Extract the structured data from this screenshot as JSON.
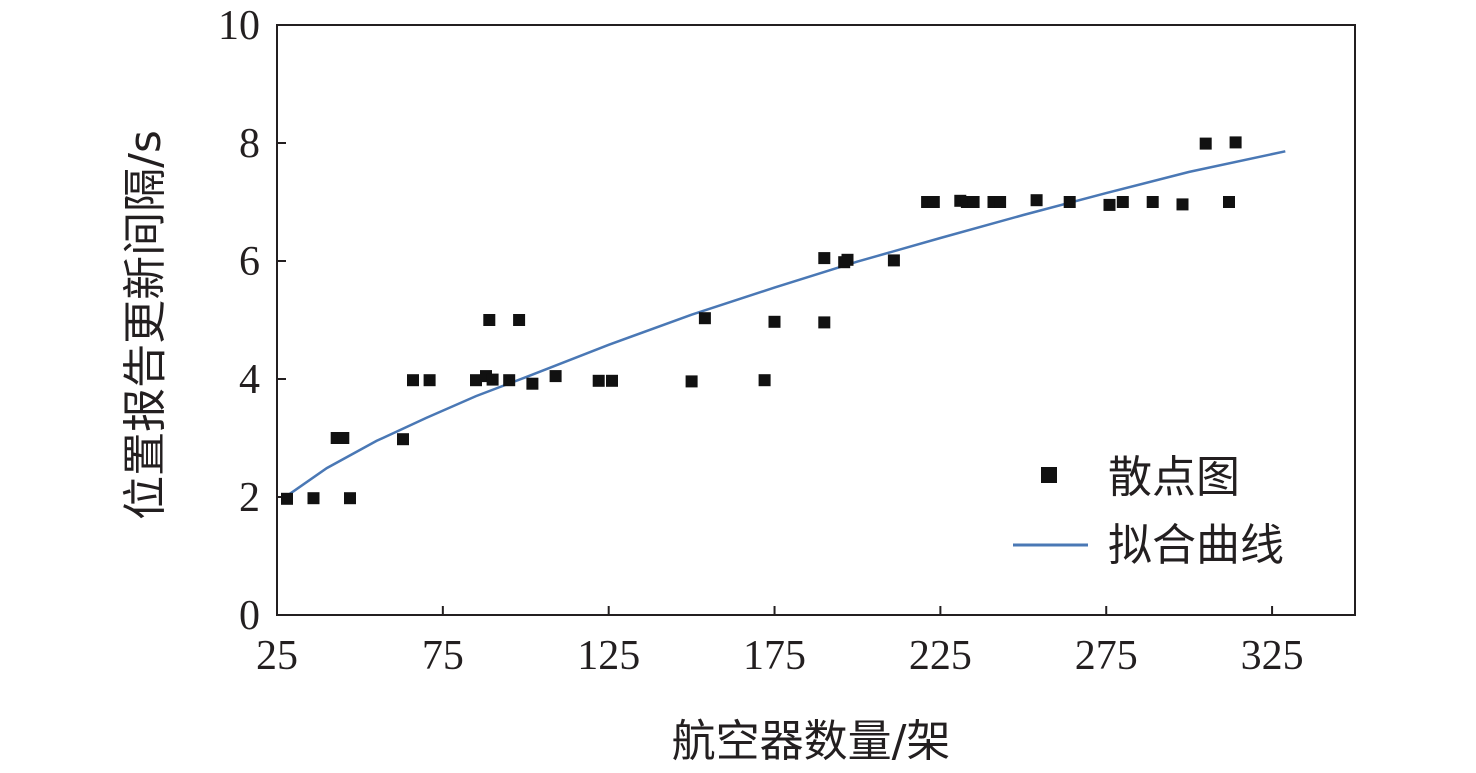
{
  "chart_data": {
    "type": "scatter",
    "xlabel": "航空器数量/架",
    "ylabel": "位置报告更新间隔/s",
    "xlim": [
      25,
      350
    ],
    "ylim": [
      0,
      10
    ],
    "xticks": [
      25,
      75,
      125,
      175,
      225,
      275,
      325
    ],
    "yticks": [
      0,
      2,
      4,
      6,
      8,
      10
    ],
    "grid": false,
    "legend_position": "bottom-right",
    "series": [
      {
        "name": "散点图",
        "kind": "scatter",
        "marker": "square",
        "color": "#111111",
        "points": [
          [
            28,
            1.97
          ],
          [
            36,
            1.98
          ],
          [
            43,
            3.0
          ],
          [
            45,
            3.0
          ],
          [
            47,
            1.98
          ],
          [
            63,
            2.98
          ],
          [
            66,
            3.98
          ],
          [
            71,
            3.98
          ],
          [
            85,
            3.98
          ],
          [
            88,
            4.05
          ],
          [
            89,
            5.0
          ],
          [
            90,
            3.99
          ],
          [
            95,
            3.98
          ],
          [
            98,
            5.0
          ],
          [
            102,
            3.92
          ],
          [
            109,
            4.05
          ],
          [
            122,
            3.97
          ],
          [
            126,
            3.97
          ],
          [
            150,
            3.96
          ],
          [
            154,
            5.03
          ],
          [
            172,
            3.98
          ],
          [
            175,
            4.97
          ],
          [
            190,
            6.05
          ],
          [
            190,
            4.96
          ],
          [
            196,
            5.98
          ],
          [
            197,
            6.02
          ],
          [
            211,
            6.01
          ],
          [
            221,
            7.0
          ],
          [
            223,
            7.0
          ],
          [
            231,
            7.02
          ],
          [
            233,
            7.0
          ],
          [
            235,
            7.0
          ],
          [
            241,
            7.0
          ],
          [
            243,
            7.0
          ],
          [
            254,
            7.03
          ],
          [
            264,
            7.0
          ],
          [
            276,
            6.95
          ],
          [
            280,
            7.0
          ],
          [
            289,
            7.0
          ],
          [
            298,
            6.96
          ],
          [
            305,
            7.99
          ],
          [
            312,
            7.0
          ],
          [
            314,
            8.01
          ]
        ]
      },
      {
        "name": "拟合曲线",
        "kind": "line",
        "color": "#4a78b5",
        "points": [
          [
            27,
            1.98
          ],
          [
            40,
            2.49
          ],
          [
            55,
            2.95
          ],
          [
            70,
            3.34
          ],
          [
            85,
            3.71
          ],
          [
            100,
            4.03
          ],
          [
            125,
            4.58
          ],
          [
            150,
            5.09
          ],
          [
            175,
            5.55
          ],
          [
            200,
            5.99
          ],
          [
            225,
            6.39
          ],
          [
            250,
            6.78
          ],
          [
            275,
            7.15
          ],
          [
            300,
            7.51
          ],
          [
            329,
            7.86
          ]
        ]
      }
    ]
  }
}
